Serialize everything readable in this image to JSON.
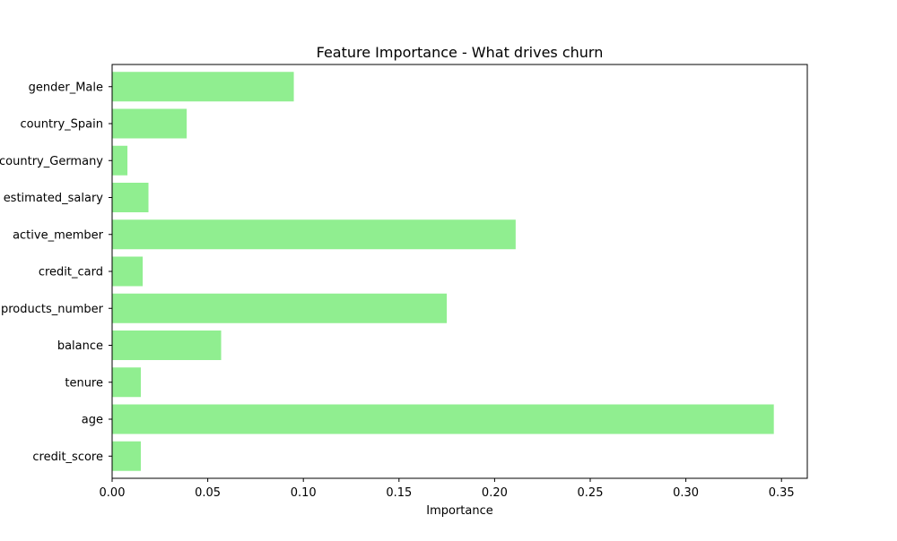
{
  "chart_data": {
    "type": "bar",
    "orientation": "horizontal",
    "title": "Feature Importance - What drives churn",
    "xlabel": "Importance",
    "ylabel": "",
    "categories": [
      "credit_score",
      "age",
      "tenure",
      "balance",
      "products_number",
      "credit_card",
      "active_member",
      "estimated_salary",
      "country_Germany",
      "country_Spain",
      "gender_Male"
    ],
    "values": [
      0.015,
      0.346,
      0.015,
      0.057,
      0.175,
      0.016,
      0.211,
      0.019,
      0.008,
      0.039,
      0.095
    ],
    "xlim": [
      0,
      0.3635
    ],
    "xticks": [
      0.0,
      0.05,
      0.1,
      0.15,
      0.2,
      0.25,
      0.3,
      0.35
    ],
    "xtick_labels": [
      "0.00",
      "0.05",
      "0.10",
      "0.15",
      "0.20",
      "0.25",
      "0.30",
      "0.35"
    ],
    "bar_color": "#90ee90",
    "grid": false,
    "legend": "none"
  }
}
